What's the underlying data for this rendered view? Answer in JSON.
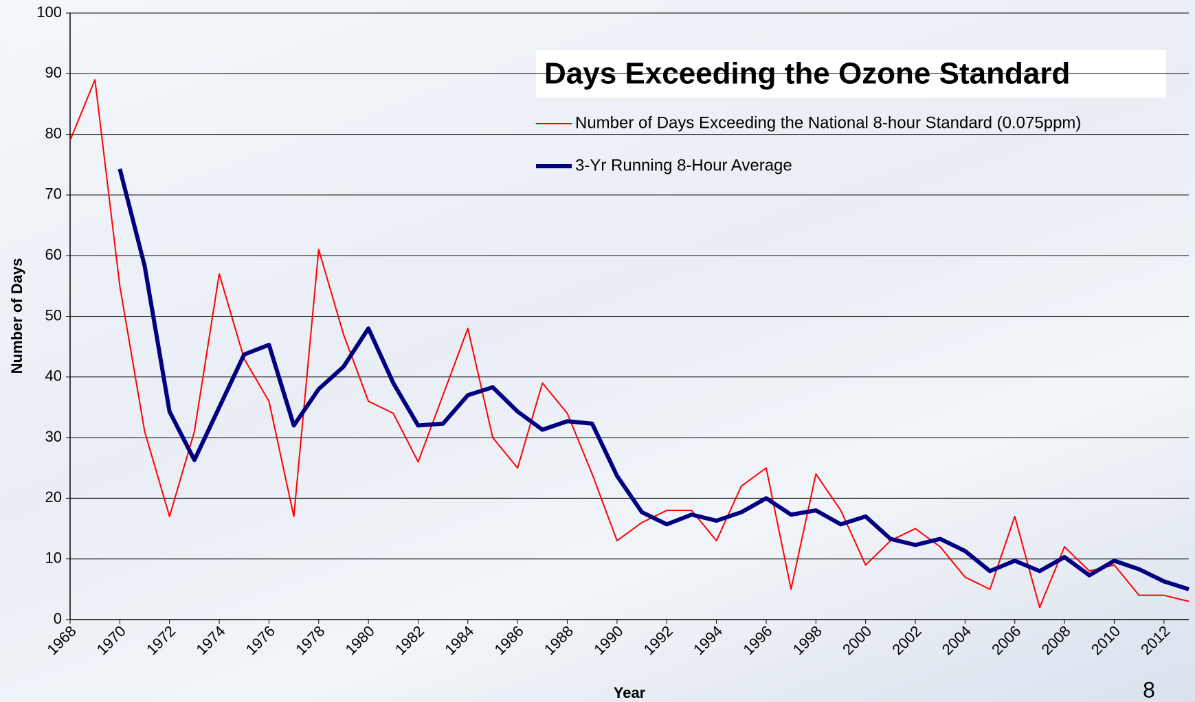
{
  "chart_data": {
    "type": "line",
    "title": "Days Exceeding the Ozone Standard",
    "x_label": "Year",
    "y_label": "Number of Days",
    "x": [
      1968,
      1969,
      1970,
      1971,
      1972,
      1973,
      1974,
      1975,
      1976,
      1977,
      1978,
      1979,
      1980,
      1981,
      1982,
      1983,
      1984,
      1985,
      1986,
      1987,
      1988,
      1989,
      1990,
      1991,
      1992,
      1993,
      1994,
      1995,
      1996,
      1997,
      1998,
      1999,
      2000,
      2001,
      2002,
      2003,
      2004,
      2005,
      2006,
      2007,
      2008,
      2009,
      2010,
      2011,
      2012,
      2013
    ],
    "series": [
      {
        "name": "Number of Days Exceeding the National 8-hour Standard (0.075ppm)",
        "color": "#ff0000",
        "width": 2,
        "values": [
          79,
          89,
          55,
          31,
          17,
          31,
          57,
          43,
          36,
          17,
          61,
          47,
          36,
          34,
          26,
          37,
          48,
          30,
          25,
          39,
          34,
          24,
          13,
          16,
          18,
          18,
          13,
          22,
          25,
          5,
          24,
          18,
          9,
          13,
          15,
          12,
          7,
          5,
          17,
          2,
          12,
          8,
          9,
          4,
          4,
          3
        ]
      },
      {
        "name": "3-Yr Running 8-Hour Average",
        "color": "#000080",
        "width": 6,
        "values": [
          null,
          null,
          74.3,
          58.3,
          34.3,
          26.3,
          35,
          43.7,
          45.3,
          32,
          38,
          41.7,
          48,
          39,
          32,
          32.3,
          37,
          38.3,
          34.3,
          31.3,
          32.7,
          32.3,
          23.7,
          17.7,
          15.7,
          17.3,
          16.3,
          17.7,
          20,
          17.3,
          18,
          15.7,
          17,
          13.3,
          12.3,
          13.3,
          11.3,
          8,
          9.7,
          8,
          10.3,
          7.3,
          9.7,
          8.3,
          6.3,
          5
        ]
      }
    ],
    "xlim": [
      1968,
      2013
    ],
    "xticks": [
      1968,
      1970,
      1972,
      1974,
      1976,
      1978,
      1980,
      1982,
      1984,
      1986,
      1988,
      1990,
      1992,
      1994,
      1996,
      1998,
      2000,
      2002,
      2004,
      2006,
      2008,
      2010,
      2012
    ],
    "ylim": [
      0,
      100
    ],
    "yticks": [
      0,
      10,
      20,
      30,
      40,
      50,
      60,
      70,
      80,
      90,
      100
    ],
    "grid": true
  },
  "page_number": "8"
}
